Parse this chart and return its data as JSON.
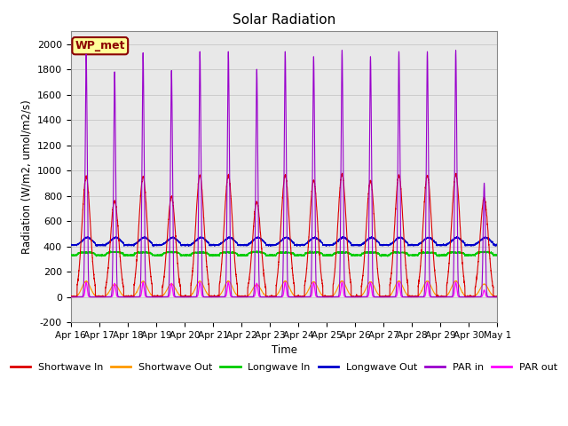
{
  "title": "Solar Radiation",
  "ylabel": "Radiation (W/m2, umol/m2/s)",
  "xlabel": "Time",
  "ylim": [
    -200,
    2100
  ],
  "yticks": [
    -200,
    0,
    200,
    400,
    600,
    800,
    1000,
    1200,
    1400,
    1600,
    1800,
    2000
  ],
  "xtick_labels": [
    "Apr 16",
    "Apr 17",
    "Apr 18",
    "Apr 19",
    "Apr 20",
    "Apr 21",
    "Apr 22",
    "Apr 23",
    "Apr 24",
    "Apr 25",
    "Apr 26",
    "Apr 27",
    "Apr 28",
    "Apr 29",
    "Apr 30",
    "May 1"
  ],
  "annotation_text": "WP_met",
  "annotation_color": "#8b0000",
  "annotation_bg": "#ffff99",
  "series": {
    "shortwave_in": {
      "color": "#dd0000",
      "label": "Shortwave In"
    },
    "shortwave_out": {
      "color": "#ff9900",
      "label": "Shortwave Out"
    },
    "longwave_in": {
      "color": "#00cc00",
      "label": "Longwave In"
    },
    "longwave_out": {
      "color": "#0000cc",
      "label": "Longwave Out"
    },
    "par_in": {
      "color": "#9900cc",
      "label": "PAR in"
    },
    "par_out": {
      "color": "#ff00ff",
      "label": "PAR out"
    }
  },
  "plot_bg": "#ffffff",
  "axes_bg": "#e8e8e8",
  "grid_color": "#cccccc"
}
